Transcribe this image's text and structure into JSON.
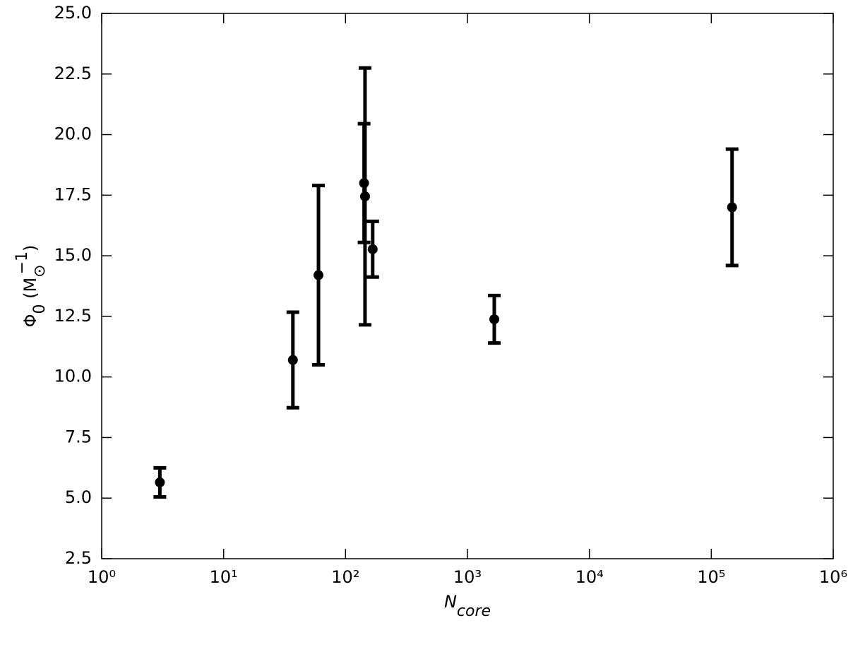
{
  "chart_data": {
    "type": "errorbar",
    "x_label": [
      {
        "text": "N"
      },
      {
        "text": "core",
        "shift": "sub"
      }
    ],
    "y_label": [
      {
        "text": "Φ"
      },
      {
        "text": "0",
        "shift": "sub"
      },
      {
        "text": " (M"
      },
      {
        "text": "⊙",
        "shift": "sub"
      },
      {
        "text": "−1",
        "shift": "sup"
      },
      {
        "text": ")"
      }
    ],
    "x": [
      3.0,
      37,
      60,
      142,
      144.5,
      167,
      1660,
      148000
    ],
    "values": [
      5.65,
      10.7,
      14.2,
      18.0,
      17.45,
      15.27,
      12.38,
      17.0
    ],
    "errors": [
      0.6,
      1.97,
      3.7,
      2.45,
      5.3,
      1.15,
      0.98,
      2.4
    ],
    "color": "#000000",
    "xscale": "log",
    "xlim": [
      1,
      1000000
    ],
    "xticks": [
      {
        "value": 1,
        "label": "10⁰"
      },
      {
        "value": 10,
        "label": "10¹"
      },
      {
        "value": 100,
        "label": "10²"
      },
      {
        "value": 1000,
        "label": "10³"
      },
      {
        "value": 10000,
        "label": "10⁴"
      },
      {
        "value": 100000,
        "label": "10⁵"
      },
      {
        "value": 1000000,
        "label": "10⁶"
      }
    ],
    "ylim": [
      2.5,
      25
    ],
    "yticks": [
      2.5,
      {
        "value": 5,
        "label": "5.0"
      },
      7.5,
      {
        "value": 10,
        "label": "10.0"
      },
      12.5,
      {
        "value": 15,
        "label": "15.0"
      },
      17.5,
      {
        "value": 20,
        "label": "20.0"
      },
      22.5,
      {
        "value": 25,
        "label": "25.0"
      }
    ],
    "grid": false
  }
}
